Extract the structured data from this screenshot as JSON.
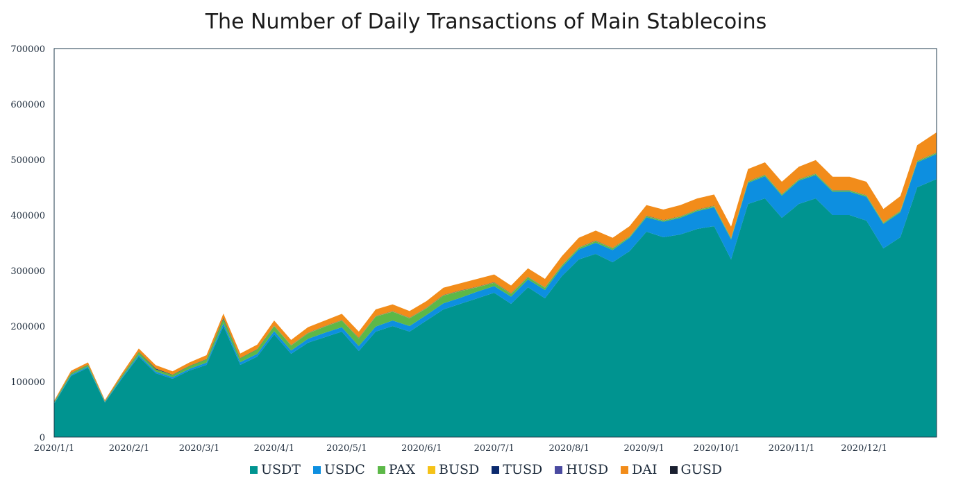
{
  "chart_data": {
    "type": "area",
    "stacked": true,
    "title": "The Number of Daily Transactions of Main Stablecoins",
    "xlabel": "",
    "ylabel": "",
    "ylim": [
      0,
      700000
    ],
    "yticks": [
      0,
      100000,
      200000,
      300000,
      400000,
      500000,
      600000,
      700000
    ],
    "xtick_labels": [
      "2020/1/1",
      "2020/2/1",
      "2020/3/1",
      "2020/4/1",
      "2020/5/1",
      "2020/6/1",
      "2020/7/1",
      "2020/8/1",
      "2020/9/1",
      "2020/10/1",
      "2020/11/1",
      "2020/12/1"
    ],
    "xlim": [
      "2020/1/1",
      "2020/12/31"
    ],
    "legend_position": "bottom",
    "x": [
      "2020/1/1",
      "2020/1/8",
      "2020/1/15",
      "2020/1/22",
      "2020/1/29",
      "2020/2/5",
      "2020/2/12",
      "2020/2/19",
      "2020/2/26",
      "2020/3/4",
      "2020/3/11",
      "2020/3/18",
      "2020/3/25",
      "2020/4/1",
      "2020/4/8",
      "2020/4/15",
      "2020/4/22",
      "2020/4/29",
      "2020/5/6",
      "2020/5/13",
      "2020/5/20",
      "2020/5/27",
      "2020/6/3",
      "2020/6/10",
      "2020/6/17",
      "2020/6/24",
      "2020/7/1",
      "2020/7/8",
      "2020/7/15",
      "2020/7/22",
      "2020/7/29",
      "2020/8/5",
      "2020/8/12",
      "2020/8/19",
      "2020/8/26",
      "2020/9/2",
      "2020/9/9",
      "2020/9/16",
      "2020/9/23",
      "2020/9/30",
      "2020/10/7",
      "2020/10/14",
      "2020/10/21",
      "2020/10/28",
      "2020/11/4",
      "2020/11/11",
      "2020/11/18",
      "2020/11/25",
      "2020/12/2",
      "2020/12/9",
      "2020/12/16",
      "2020/12/23",
      "2020/12/31"
    ],
    "series": [
      {
        "name": "USDT",
        "color": "#009490",
        "values": [
          60000,
          110000,
          125000,
          62000,
          105000,
          145000,
          115000,
          105000,
          120000,
          130000,
          200000,
          130000,
          145000,
          185000,
          150000,
          170000,
          180000,
          190000,
          155000,
          190000,
          200000,
          190000,
          210000,
          230000,
          240000,
          250000,
          260000,
          240000,
          270000,
          250000,
          290000,
          320000,
          330000,
          315000,
          335000,
          370000,
          360000,
          365000,
          375000,
          380000,
          320000,
          420000,
          430000,
          395000,
          420000,
          430000,
          400000,
          400000,
          390000,
          340000,
          360000,
          450000,
          465000
        ]
      },
      {
        "name": "USDC",
        "color": "#0d8fe0",
        "values": [
          1000,
          2000,
          2000,
          1000,
          2000,
          3000,
          3000,
          3000,
          3000,
          4000,
          5000,
          5000,
          5000,
          6000,
          6000,
          7000,
          8000,
          8000,
          9000,
          9000,
          10000,
          10000,
          10000,
          11000,
          11000,
          12000,
          12000,
          13000,
          14000,
          15000,
          16000,
          18000,
          20000,
          22000,
          24000,
          26000,
          28000,
          30000,
          32000,
          34000,
          36000,
          38000,
          40000,
          40000,
          42000,
          42000,
          42000,
          42000,
          43000,
          44000,
          45000,
          45000,
          45000
        ]
      },
      {
        "name": "PAX",
        "color": "#5cb848",
        "values": [
          2000,
          3000,
          3000,
          1000,
          3000,
          5000,
          4000,
          4000,
          5000,
          6000,
          8000,
          7000,
          8000,
          9000,
          9000,
          10000,
          11000,
          12000,
          14000,
          18000,
          16000,
          14000,
          12000,
          14000,
          12000,
          8000,
          6000,
          5000,
          4000,
          4000,
          3000,
          3000,
          3000,
          3000,
          2000,
          2000,
          2000,
          2000,
          2000,
          2000,
          2000,
          2000,
          2000,
          2000,
          2000,
          2000,
          2000,
          2000,
          2000,
          2000,
          2000,
          2000,
          2000
        ]
      },
      {
        "name": "BUSD",
        "color": "#f5c218",
        "values": [
          0,
          0,
          0,
          0,
          0,
          0,
          0,
          0,
          0,
          0,
          0,
          0,
          0,
          500,
          500,
          500,
          500,
          500,
          500,
          500,
          500,
          500,
          500,
          500,
          500,
          500,
          500,
          500,
          500,
          500,
          500,
          500,
          500,
          500,
          500,
          500,
          500,
          500,
          500,
          500,
          500,
          500,
          500,
          500,
          500,
          500,
          500,
          500,
          500,
          500,
          500,
          500,
          500
        ]
      },
      {
        "name": "TUSD",
        "color": "#0b2a6e",
        "values": [
          500,
          500,
          500,
          500,
          500,
          500,
          1500,
          500,
          500,
          500,
          1500,
          500,
          500,
          500,
          500,
          500,
          500,
          500,
          500,
          500,
          500,
          500,
          500,
          500,
          500,
          500,
          500,
          500,
          500,
          500,
          500,
          500,
          500,
          500,
          500,
          500,
          500,
          500,
          500,
          500,
          500,
          500,
          500,
          500,
          500,
          500,
          500,
          500,
          500,
          500,
          500,
          500,
          500
        ]
      },
      {
        "name": "HUSD",
        "color": "#4a4aa0",
        "values": [
          0,
          0,
          0,
          0,
          0,
          0,
          0,
          0,
          0,
          0,
          0,
          0,
          0,
          0,
          0,
          0,
          0,
          0,
          0,
          0,
          0,
          0,
          0,
          0,
          0,
          0,
          0,
          0,
          0,
          0,
          0,
          0,
          0,
          0,
          0,
          0,
          0,
          0,
          0,
          0,
          0,
          0,
          0,
          0,
          0,
          0,
          0,
          0,
          0,
          0,
          0,
          0,
          0
        ]
      },
      {
        "name": "DAI",
        "color": "#f28c1a",
        "values": [
          2000,
          4000,
          4000,
          2000,
          4000,
          6000,
          6000,
          6000,
          6000,
          7000,
          8000,
          8000,
          8000,
          9000,
          9000,
          10000,
          10000,
          11000,
          11000,
          12000,
          12000,
          12000,
          12000,
          13000,
          13000,
          14000,
          14000,
          14000,
          15000,
          15000,
          16000,
          17000,
          18000,
          18000,
          18000,
          19000,
          19000,
          20000,
          20000,
          20000,
          20000,
          22000,
          22000,
          22000,
          22000,
          24000,
          24000,
          24000,
          24000,
          24000,
          26000,
          28000,
          36000
        ]
      },
      {
        "name": "GUSD",
        "color": "#1a2030",
        "values": [
          0,
          0,
          0,
          0,
          0,
          0,
          0,
          0,
          0,
          0,
          0,
          0,
          0,
          0,
          0,
          0,
          0,
          0,
          0,
          0,
          0,
          0,
          0,
          0,
          0,
          0,
          0,
          0,
          0,
          0,
          0,
          0,
          0,
          0,
          0,
          0,
          0,
          0,
          0,
          0,
          0,
          0,
          0,
          0,
          0,
          0,
          0,
          0,
          0,
          0,
          0,
          0,
          0
        ]
      }
    ]
  }
}
